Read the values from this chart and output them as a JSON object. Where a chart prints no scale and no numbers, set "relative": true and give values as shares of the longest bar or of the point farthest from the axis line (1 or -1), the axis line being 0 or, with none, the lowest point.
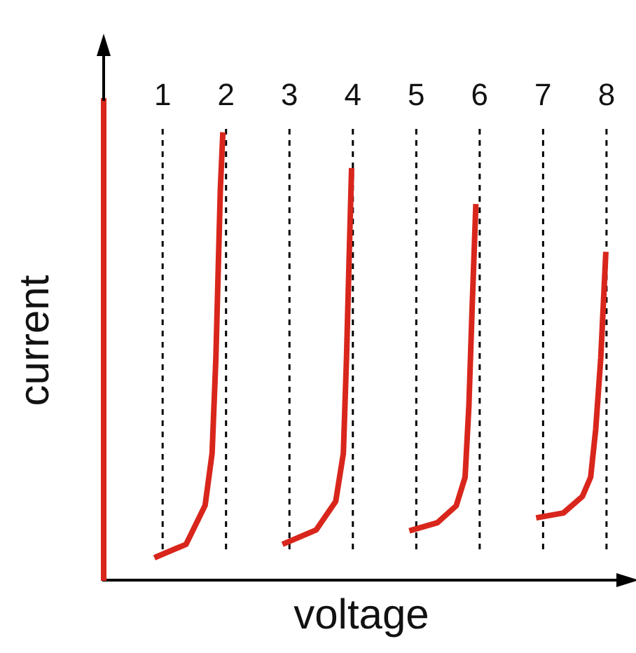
{
  "chart_data": {
    "type": "line",
    "relative": true,
    "xlabel": "voltage",
    "ylabel": "current",
    "xlim": [
      0.07,
      8.2
    ],
    "xticks": [
      1,
      2,
      3,
      4,
      5,
      6,
      7,
      8
    ],
    "grid": "x",
    "tick_labels": "x",
    "marker": "none",
    "series": [
      {
        "color": "#d9261c",
        "x": [
          0.87,
          1.37,
          1.67,
          1.78,
          1.84,
          1.88,
          1.91,
          1.95
        ],
        "values": [
          0.05,
          0.08,
          0.167,
          0.283,
          0.497,
          0.712,
          0.872,
          1
        ]
      },
      {
        "color": "#d9261c",
        "x": [
          2.89,
          3.42,
          3.73,
          3.85,
          3.9,
          3.94,
          3.98
        ],
        "values": [
          0.08,
          0.112,
          0.176,
          0.283,
          0.497,
          0.712,
          0.92
        ]
      },
      {
        "color": "#d9261c",
        "x": [
          4.89,
          5.33,
          5.63,
          5.77,
          5.83,
          5.88,
          5.94
        ],
        "values": [
          0.11,
          0.128,
          0.166,
          0.23,
          0.39,
          0.604,
          0.84
        ]
      },
      {
        "color": "#d9261c",
        "x": [
          6.89,
          7.32,
          7.62,
          7.75,
          7.83,
          7.91,
          7.99
        ],
        "values": [
          0.139,
          0.15,
          0.187,
          0.23,
          0.337,
          0.497,
          0.733
        ]
      }
    ]
  }
}
